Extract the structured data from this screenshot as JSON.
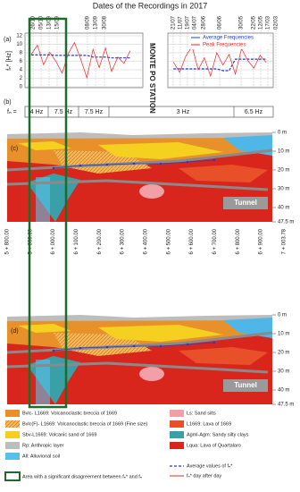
{
  "chart_data": {
    "type": "line",
    "title": "Dates of the Recordings in 2017",
    "dates": [
      "26/10",
      "05/10",
      "13/09",
      "15/09",
      "08/09",
      "13/09",
      "30/08",
      "21/07",
      "11/07",
      "19/07",
      "04/07",
      "28/06",
      "06/06",
      "30/05",
      "22/05",
      "12/05",
      "17/03",
      "02/03"
    ],
    "y_label": "fₙ* [Hz]",
    "annotation": "MONTE PO STATION",
    "x": [
      5830,
      5860,
      5890,
      5920,
      5950,
      5980,
      6010,
      6040,
      6070,
      6100,
      6130,
      6160,
      6190,
      6220,
      6250,
      6280,
      6310,
      6400,
      6520,
      6550,
      6580,
      6610,
      6640,
      6670,
      6700,
      6730,
      6760,
      6790,
      6820,
      6850,
      6880,
      6910,
      6940,
      6970
    ],
    "xlim": [
      5800,
      7003.78
    ],
    "ylim": [
      0,
      12
    ],
    "yticks": [
      0,
      2,
      4,
      6,
      8,
      10,
      12
    ],
    "grid": true,
    "legend": "top-right",
    "series": [
      {
        "name": "Average Frequencies",
        "color": "#1f3fd0",
        "values": [
          7.5,
          7.5,
          7.5,
          7.5,
          7.4,
          7.4,
          7.4,
          7.4,
          7.4,
          7.4,
          7.0,
          7.0,
          7.0,
          6.8,
          6.8,
          6.8,
          6.8,
          null,
          4.2,
          4.2,
          4.2,
          4.2,
          4.2,
          4.2,
          4.2,
          4.2,
          3.8,
          3.8,
          6.5,
          6.5,
          6.5,
          6.5,
          6.5,
          6.5
        ]
      },
      {
        "name": "Peak Frequencies",
        "color": "#ff2020",
        "values": [
          7.6,
          9.8,
          5.2,
          8.1,
          6.0,
          3.2,
          7.8,
          10.4,
          6.5,
          2.1,
          8.8,
          4.5,
          9.1,
          3.6,
          7.0,
          5.5,
          8.5,
          null,
          5.8,
          3.4,
          7.2,
          9.5,
          4.0,
          6.8,
          2.5,
          8.0,
          5.1,
          7.6,
          3.0,
          9.0,
          6.2,
          4.4,
          7.4,
          5.7
        ]
      }
    ]
  },
  "panels": {
    "a": "(a)",
    "b": "(b)",
    "c": "(c)",
    "d": "(d)"
  },
  "fn_row": {
    "label": "fₙ =",
    "cells": [
      "4 Hz",
      "7.5 Hz",
      "7.5 Hz",
      "3 Hz",
      "6.5 Hz"
    ]
  },
  "section": {
    "depths": [
      "0 m",
      "10 m",
      "20 m",
      "30 m",
      "40 m",
      "47.5 m"
    ],
    "tunnel": "Tunnel",
    "chainages": [
      "5 + 800.00",
      "5 + 900.00",
      "6 + 000.00",
      "6 + 100.00",
      "6 + 200.00",
      "6 + 300.00",
      "6 + 400.00",
      "6 + 500.00",
      "6 + 600.00",
      "6 + 700.00",
      "6 + 800.00",
      "6 + 900.00",
      "7 + 003.78"
    ]
  },
  "legend": {
    "items": [
      {
        "label": "Bvlc- L1669: Volcanoclastic breccia of 1669"
      },
      {
        "label": "Bvlc(F)- L1669: Volcanoclastic breccia of 1669 (Fine size)"
      },
      {
        "label": "Sbv-L1669: Volcanic sand of 1669"
      },
      {
        "label": "Rp: Anthropic layer"
      },
      {
        "label": "All: Alluvional soil"
      },
      {
        "label": "Area with a significant disagreement  between fₙ* and fₙ"
      },
      {
        "label": "Ls: Sand silts"
      },
      {
        "label": "L1669: Lava of 1669"
      },
      {
        "label": "Agml-Agm: Sandy silty clays"
      },
      {
        "label": "Lqua: Lava of Quartalaro"
      },
      {
        "label": "Average values of fₙ*"
      },
      {
        "label": "fₙ* day after day"
      }
    ]
  }
}
